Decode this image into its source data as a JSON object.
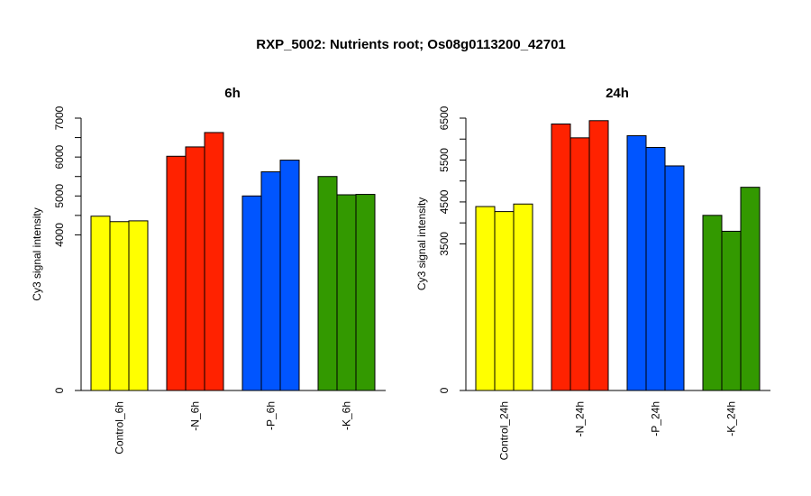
{
  "title": "RXP_5002: Nutrients root; Os08g0113200_42701",
  "colors": {
    "Control": "#ffff00",
    "N": "#ff2200",
    "P": "#0055ff",
    "K": "#339900"
  },
  "chart_data": [
    {
      "type": "bar",
      "title": "6h",
      "ylabel": "Cy3 signal intensity",
      "ylim": [
        0,
        7000
      ],
      "yticks": [
        0,
        4000,
        5000,
        6000,
        7000
      ],
      "minor_ticks": [
        4500,
        5500,
        6500
      ],
      "categories": [
        "Control_6h",
        "-N_6h",
        "-P_6h",
        "-K_6h"
      ],
      "group_colors": [
        "#ffff00",
        "#ff2200",
        "#0055ff",
        "#339900"
      ],
      "groups": [
        [
          4480,
          4340,
          4360
        ],
        [
          6020,
          6260,
          6630
        ],
        [
          5000,
          5620,
          5920
        ],
        [
          5500,
          5030,
          5040
        ]
      ]
    },
    {
      "type": "bar",
      "title": "24h",
      "ylabel": "Cy3 signal intensity",
      "ylim": [
        0,
        6500
      ],
      "yticks": [
        0,
        3500,
        4500,
        5500,
        6500
      ],
      "minor_ticks": [
        4000,
        5000,
        6000
      ],
      "categories": [
        "Control_24h",
        "-N_24h",
        "-P_24h",
        "-K_24h"
      ],
      "group_colors": [
        "#ffff00",
        "#ff2200",
        "#0055ff",
        "#339900"
      ],
      "groups": [
        [
          4390,
          4270,
          4450
        ],
        [
          6360,
          6030,
          6440
        ],
        [
          6080,
          5800,
          5360
        ],
        [
          4180,
          3800,
          4850
        ]
      ]
    }
  ]
}
